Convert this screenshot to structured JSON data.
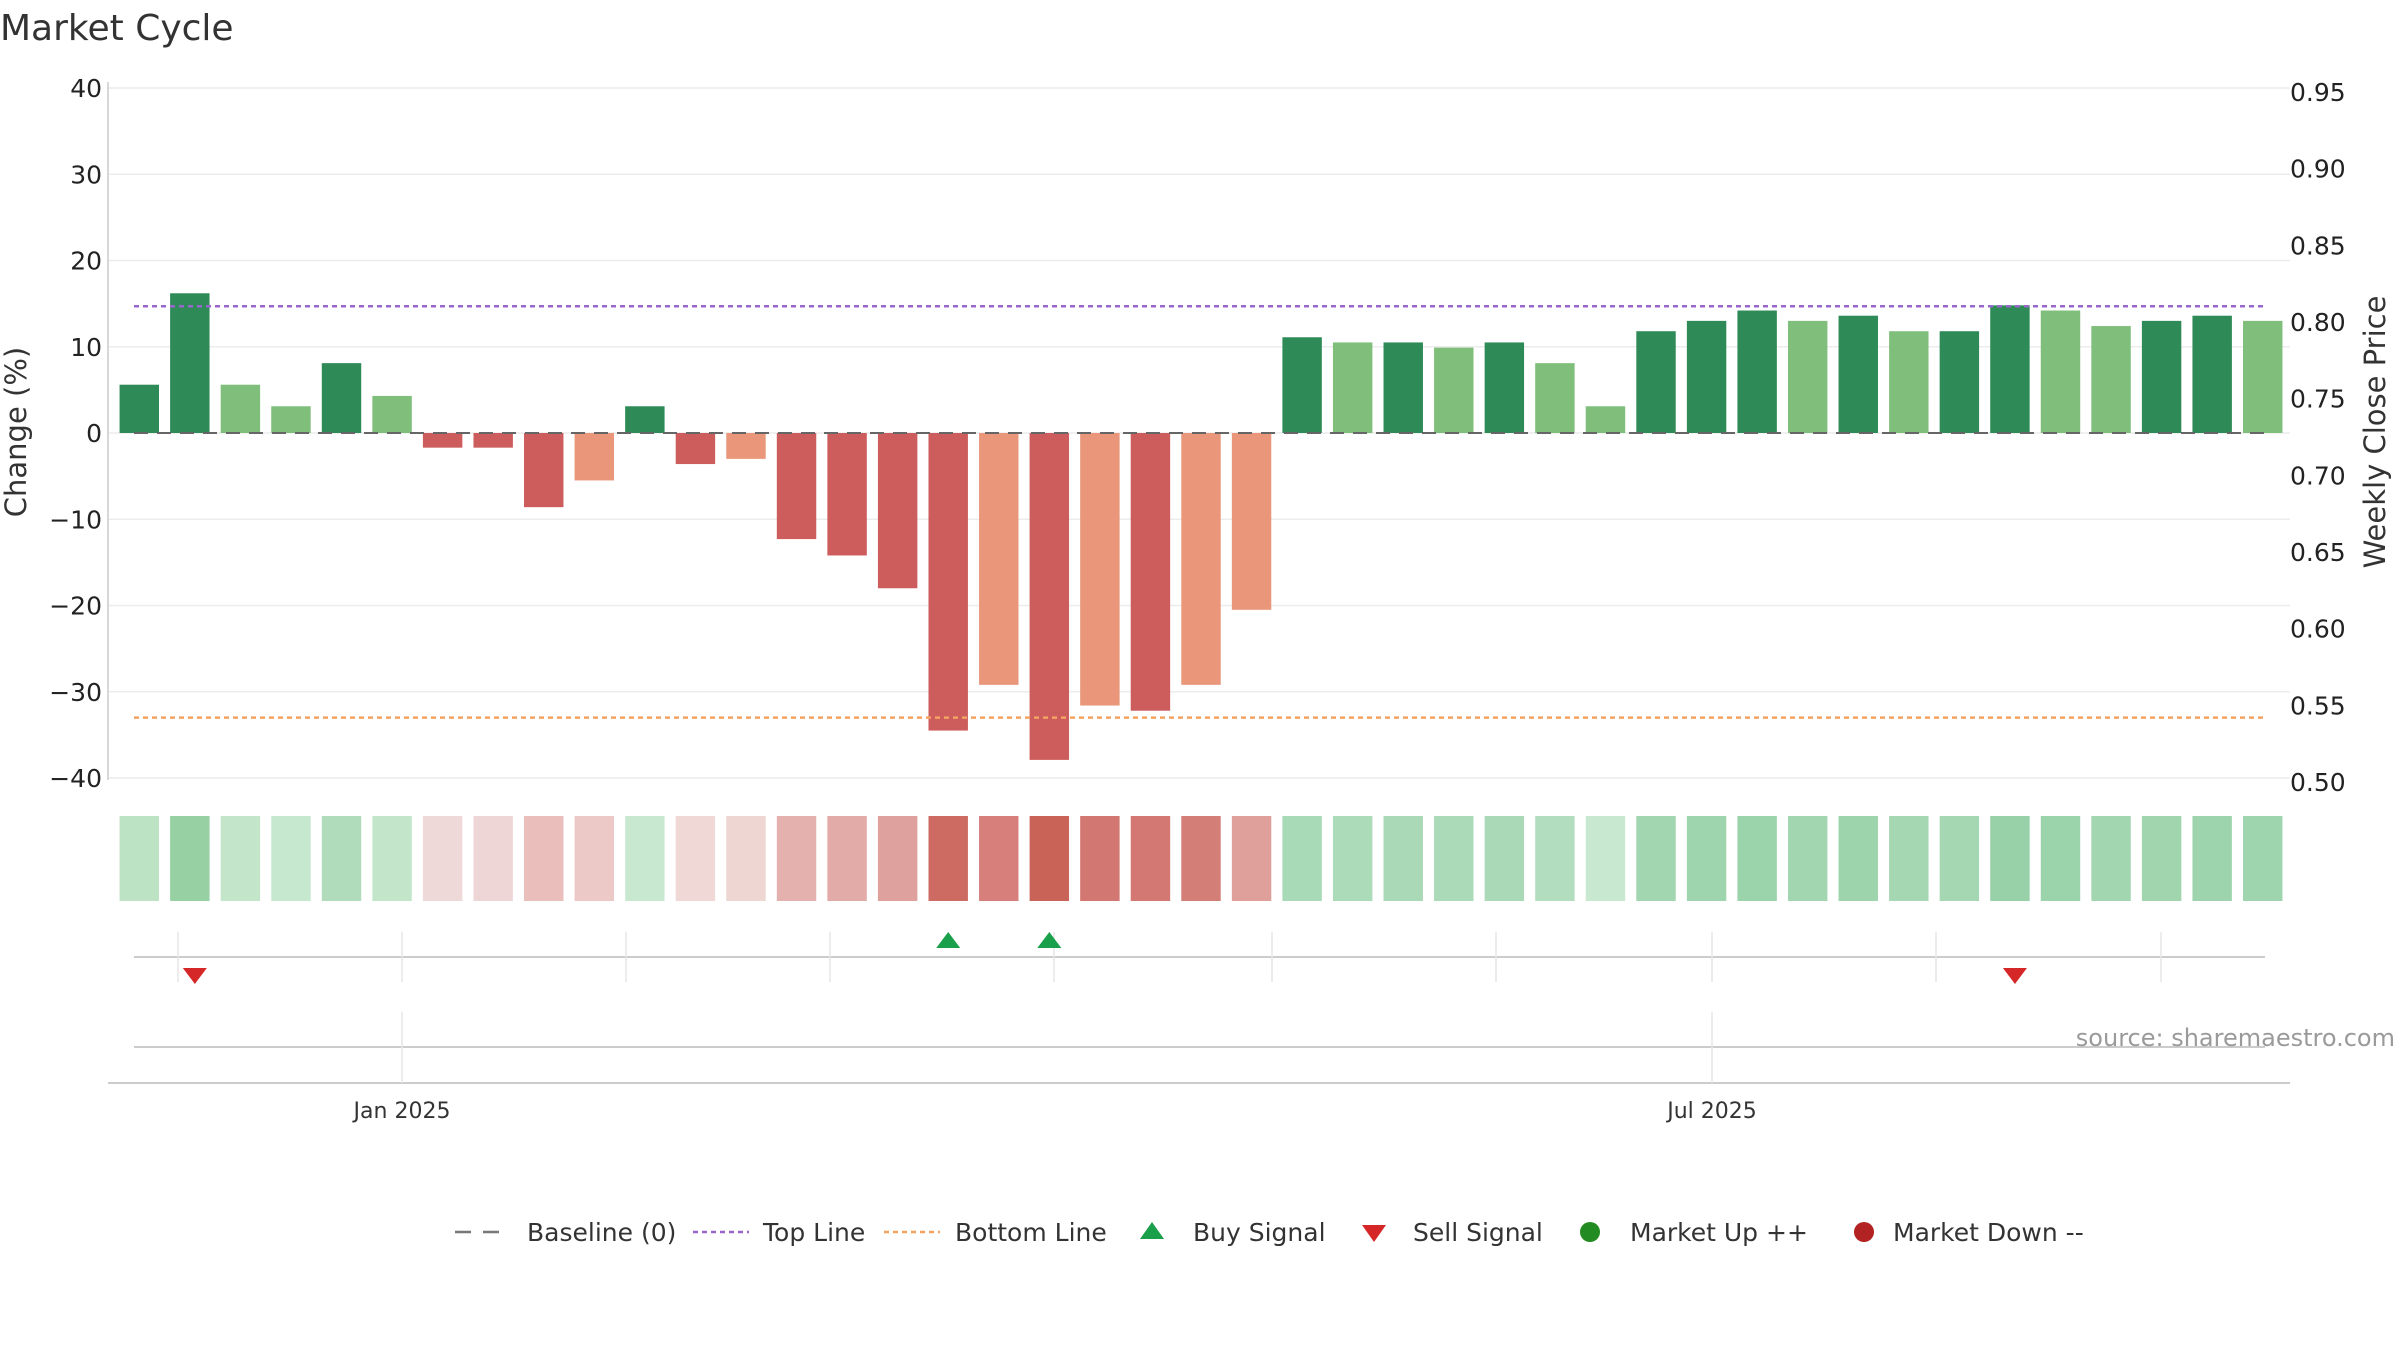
{
  "chart_data": {
    "type": "bar",
    "title": "Market Cycle",
    "ylabel": "Change (%)",
    "y2label": "Weekly Close Price",
    "ylim": [
      -40,
      40
    ],
    "y2lim": [
      0.5,
      0.95
    ],
    "yticks": [
      "40",
      "30",
      "20",
      "10",
      "0",
      "−10",
      "−20",
      "−30",
      "−40"
    ],
    "y2ticks": [
      "0.95",
      "0.90",
      "0.85",
      "0.80",
      "0.75",
      "0.70",
      "0.65",
      "0.60",
      "0.55",
      "0.50"
    ],
    "x_labels": [
      "Jan 2025",
      "Jul 2025"
    ],
    "top_line": 14.7,
    "bottom_line": -33,
    "grid": true,
    "series": [
      {
        "values": [
          5.6,
          16.2,
          5.6,
          3.1,
          8.1,
          4.3,
          -1.7,
          -1.7,
          -8.6,
          -5.5,
          3.1,
          -3.6,
          -3.0,
          -12.3,
          -14.2,
          -18.0,
          -34.5,
          -29.2,
          -37.9,
          -31.6,
          -32.2,
          -29.2,
          -20.5,
          11.1,
          10.5,
          10.5,
          9.9,
          10.5,
          8.1,
          3.1,
          11.8,
          13.0,
          14.2,
          13.0,
          13.6,
          11.8,
          11.8,
          14.8,
          14.2,
          12.4,
          13.0,
          13.6,
          13.0
        ],
        "colors": [
          "#2e8b57",
          "#2e8b57",
          "#7fbf7b",
          "#7fbf7b",
          "#2e8b57",
          "#7fbf7b",
          "#cd5c5c",
          "#cd5c5c",
          "#cd5c5c",
          "#e9967a",
          "#2e8b57",
          "#cd5c5c",
          "#e9967a",
          "#cd5c5c",
          "#cd5c5c",
          "#cd5c5c",
          "#cd5c5c",
          "#e9967a",
          "#cd5c5c",
          "#e9967a",
          "#cd5c5c",
          "#e9967a",
          "#e9967a",
          "#2e8b57",
          "#7fbf7b",
          "#2e8b57",
          "#7fbf7b",
          "#2e8b57",
          "#7fbf7b",
          "#7fbf7b",
          "#2e8b57",
          "#2e8b57",
          "#2e8b57",
          "#7fbf7b",
          "#2e8b57",
          "#7fbf7b",
          "#2e8b57",
          "#2e8b57",
          "#7fbf7b",
          "#7fbf7b",
          "#2e8b57",
          "#2e8b57",
          "#7fbf7b"
        ]
      }
    ],
    "heat_strip": [
      "#bde3c5",
      "#96d0a3",
      "#c3e6cb",
      "#c6e8ce",
      "#b1dcbb",
      "#c3e6cb",
      "#efd8d8",
      "#efd6d6",
      "#eabebb",
      "#ecc9c7",
      "#c8e8d0",
      "#f0d8d6",
      "#eed6d3",
      "#e4b1ae",
      "#e2aba7",
      "#dea19d",
      "#cd6a61",
      "#d7807b",
      "#c96358",
      "#d27772",
      "#d47873",
      "#d47e78",
      "#df9f9b",
      "#a8dab7",
      "#acdbb9",
      "#a9d9b6",
      "#abdab9",
      "#a9d9b6",
      "#b2ddbe",
      "#c8e8d0",
      "#a1d6b0",
      "#9fd5ae",
      "#9bd3aa",
      "#a1d6b0",
      "#9dd4ac",
      "#a4d7b2",
      "#a4d7b2",
      "#98d1a7",
      "#9bd3aa",
      "#a2d6b1",
      "#a0d5ae",
      "#9ed4ad",
      "#9fd5ae"
    ],
    "buy_signals": [
      16,
      18
    ],
    "sell_signals": [
      1,
      37
    ],
    "colors": {
      "up_strong": "#2e8b57",
      "up_light": "#7fbf7b",
      "down_strong": "#cd5c5c",
      "down_light": "#e9967a",
      "top_line": "#9966cc",
      "bottom_line": "#f4a261",
      "buy": "#1aa04a",
      "sell": "#d62728",
      "market_up": "#228b22",
      "market_down": "#b22222"
    }
  },
  "source_text": "source: sharemaestro.com",
  "legend": [
    {
      "label": "Baseline (0)",
      "icon": "dash-line-icon",
      "color": "#777777"
    },
    {
      "label": "Top Line",
      "icon": "dotted-line-icon",
      "color": "#9966cc"
    },
    {
      "label": "Bottom Line",
      "icon": "dotted-line-icon",
      "color": "#f4a261"
    },
    {
      "label": "Buy Signal",
      "icon": "triangle-up-icon",
      "color": "#1aa04a"
    },
    {
      "label": "Sell Signal",
      "icon": "triangle-down-icon",
      "color": "#d62728"
    },
    {
      "label": "Market Up ++",
      "icon": "dot-icon",
      "color": "#228b22"
    },
    {
      "label": "Market Down --",
      "icon": "dot-icon",
      "color": "#b22222"
    }
  ]
}
